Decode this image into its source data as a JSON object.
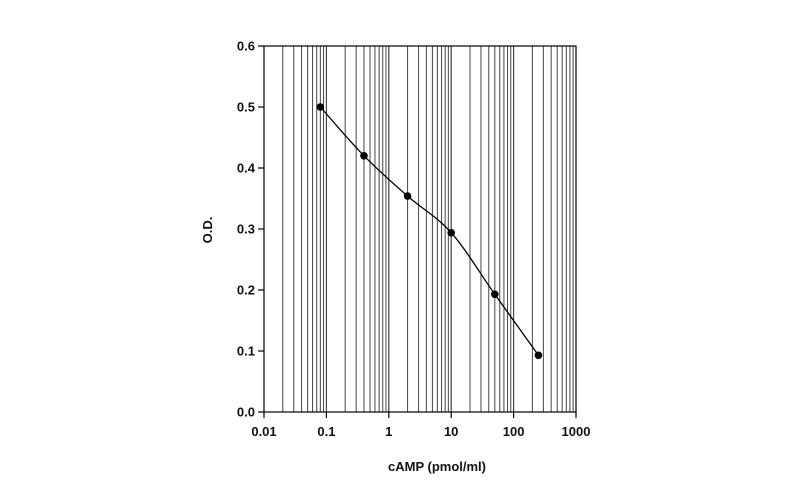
{
  "chart_data": {
    "type": "line",
    "xlabel": "cAMP  (pmol/ml)",
    "ylabel": "O.D.",
    "x_scale": "log",
    "xlim": [
      0.01,
      1000
    ],
    "ylim": [
      0,
      0.6
    ],
    "x_ticks": [
      {
        "value": 0.01,
        "label": "0.01"
      },
      {
        "value": 0.1,
        "label": "0.1"
      },
      {
        "value": 1,
        "label": "1"
      },
      {
        "value": 10,
        "label": "10"
      },
      {
        "value": 100,
        "label": "100"
      },
      {
        "value": 1000,
        "label": "1000"
      }
    ],
    "y_ticks": [
      {
        "value": 0.0,
        "label": "0.0"
      },
      {
        "value": 0.1,
        "label": "0.1"
      },
      {
        "value": 0.2,
        "label": "0.2"
      },
      {
        "value": 0.3,
        "label": "0.3"
      },
      {
        "value": 0.4,
        "label": "0.4"
      },
      {
        "value": 0.5,
        "label": "0.5"
      },
      {
        "value": 0.6,
        "label": "0.6"
      }
    ],
    "grid": {
      "vertical_log_minor": true,
      "horizontal": false
    },
    "line_color": "#000000",
    "marker_color": "#000000",
    "series": [
      {
        "x": [
          0.08,
          0.4,
          2,
          10,
          50,
          250
        ],
        "y": [
          0.5,
          0.42,
          0.354,
          0.294,
          0.193,
          0.093
        ]
      }
    ]
  }
}
